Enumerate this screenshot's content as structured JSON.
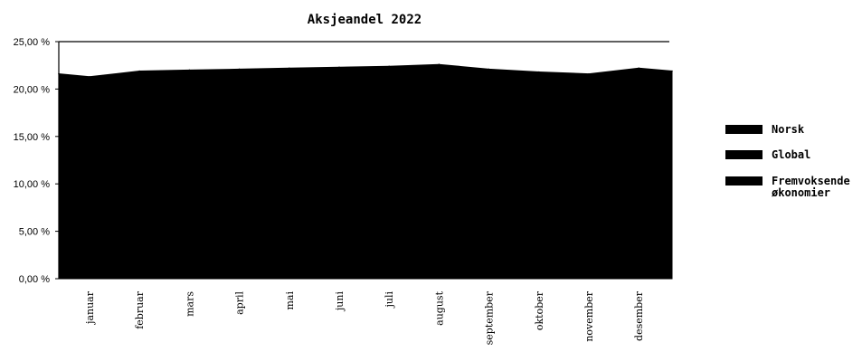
{
  "chart_data": {
    "type": "area",
    "title": "Aksjeandel 2022",
    "xlabel": "",
    "ylabel": "",
    "ylim": [
      0,
      25
    ],
    "y_tick_labels": [
      "0,00 %",
      "5,00 %",
      "10,00 %",
      "15,00 %",
      "20,00 %",
      "25,00 %"
    ],
    "categories": [
      "januar",
      "februar",
      "mars",
      "april",
      "mai",
      "juni",
      "juli",
      "august",
      "september",
      "oktober",
      "november",
      "desember"
    ],
    "points": [
      {
        "x": "start",
        "y": 21.6
      },
      {
        "x": "januar",
        "y": 21.3
      },
      {
        "x": "februar",
        "y": 21.9
      },
      {
        "x": "mars",
        "y": 22.0
      },
      {
        "x": "april",
        "y": 22.1
      },
      {
        "x": "mai",
        "y": 22.2
      },
      {
        "x": "juni",
        "y": 22.3
      },
      {
        "x": "juli",
        "y": 22.4
      },
      {
        "x": "august",
        "y": 22.6
      },
      {
        "x": "september",
        "y": 22.1
      },
      {
        "x": "oktober",
        "y": 21.8
      },
      {
        "x": "november",
        "y": 21.6
      },
      {
        "x": "desember",
        "y": 22.2
      },
      {
        "x": "end",
        "y": 21.9
      }
    ],
    "series": [
      {
        "name": "Norsk",
        "color": "#000000"
      },
      {
        "name": "Global",
        "color": "#000000"
      },
      {
        "name": "Fremvoksende økonomier",
        "color": "#000000"
      }
    ],
    "legend": {
      "position": "right",
      "entries": [
        "Norsk",
        "Global",
        "Fremvoksende\nøkonomier"
      ]
    },
    "grid": false,
    "fill_color": "#000000"
  }
}
